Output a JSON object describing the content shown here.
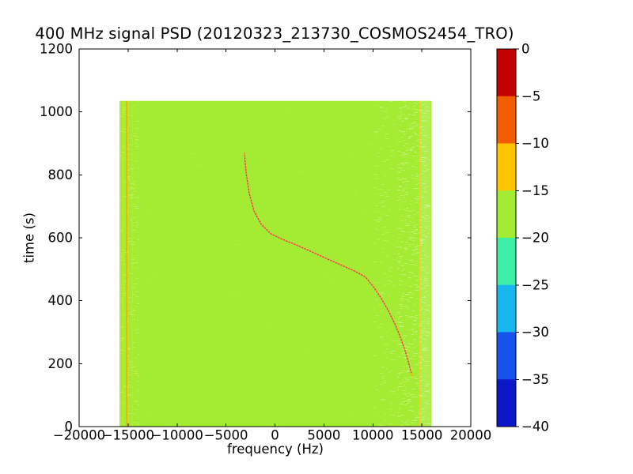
{
  "chart_data": {
    "type": "heatmap",
    "title": "400 MHz signal PSD (20120323_213730_COSMOS2454_TRO)",
    "xlabel": "frequency (Hz)",
    "ylabel": "time (s)",
    "xlim": [
      -20000,
      20000
    ],
    "ylim": [
      0,
      1200
    ],
    "grid": false,
    "xticks": [
      -20000,
      -15000,
      -10000,
      -5000,
      0,
      5000,
      10000,
      15000,
      20000
    ],
    "xtick_labels": [
      "−20000",
      "−15000",
      "−10000",
      "−5000",
      "0",
      "5000",
      "10000",
      "15000",
      "20000"
    ],
    "yticks": [
      0,
      200,
      400,
      600,
      800,
      1000,
      1200
    ],
    "ytick_labels": [
      "0",
      "200",
      "400",
      "600",
      "800",
      "1000",
      "1200"
    ],
    "data_extent": {
      "f_min": -15880,
      "f_max": 15960,
      "t_min": 0,
      "t_max": 1035
    },
    "background_level_db": -17,
    "background_color": "#a4ec34",
    "colorbar": {
      "position": "right",
      "tick_values": [
        0,
        -5,
        -10,
        -15,
        -20,
        -25,
        -30,
        -35,
        -40
      ],
      "tick_labels": [
        "0",
        "−5",
        "−10",
        "−15",
        "−20",
        "−25",
        "−30",
        "−35",
        "−40"
      ],
      "bands_top_to_bottom": [
        {
          "from": 0,
          "to": -5,
          "color": "#c40000"
        },
        {
          "from": -5,
          "to": -10,
          "color": "#f25c00"
        },
        {
          "from": -10,
          "to": -15,
          "color": "#ffc400"
        },
        {
          "from": -15,
          "to": -20,
          "color": "#a4ec34"
        },
        {
          "from": -20,
          "to": -25,
          "color": "#3deea6"
        },
        {
          "from": -25,
          "to": -30,
          "color": "#18b6ee"
        },
        {
          "from": -30,
          "to": -35,
          "color": "#1653ea"
        },
        {
          "from": -35,
          "to": -40,
          "color": "#0b16c8"
        }
      ]
    },
    "vertical_lines": [
      {
        "f": -15800,
        "color": "#ffd84a",
        "width": 1,
        "opacity": 0.45,
        "dash": null
      },
      {
        "f": -15500,
        "color": "#ffd800",
        "width": 1,
        "opacity": 0.7,
        "dash": null
      },
      {
        "f": -15150,
        "color": "#ffb000",
        "width": 2,
        "opacity": 0.95,
        "dash": null
      },
      {
        "f": -14550,
        "color": "#ffd800",
        "width": 1,
        "opacity": 0.5,
        "dash": "4,2"
      },
      {
        "f": -14000,
        "color": "#ffe060",
        "width": 1,
        "opacity": 0.22,
        "dash": "2,3"
      },
      {
        "f": -600,
        "color": "#ffe060",
        "width": 1,
        "opacity": 0.15,
        "dash": "2,3"
      },
      {
        "f": 14750,
        "color": "#ffc81e",
        "width": 1.5,
        "opacity": 0.9,
        "dash": null
      },
      {
        "f": 15350,
        "color": "#ffd84a",
        "width": 1,
        "opacity": 0.4,
        "dash": "4,2"
      }
    ],
    "noise_bands": [
      {
        "f_from": 12400,
        "f_to": 15900,
        "density": 1.6,
        "palette": [
          "rgba(255,255,255,0.30)",
          "rgba(235,255,170,0.45)",
          "rgba(255,240,140,0.28)"
        ]
      },
      {
        "f_from": 10000,
        "f_to": 12400,
        "density": 0.35,
        "palette": [
          "rgba(255,255,255,0.22)",
          "rgba(235,255,170,0.30)"
        ]
      },
      {
        "f_from": -15880,
        "f_to": -13800,
        "density": 0.5,
        "palette": [
          "rgba(255,240,130,0.30)",
          "rgba(235,255,170,0.35)"
        ]
      },
      {
        "f_from": -13800,
        "f_to": 10000,
        "density": 0.12,
        "palette": [
          "rgba(255,255,255,0.10)",
          "rgba(235,255,170,0.12)"
        ]
      }
    ],
    "doppler_curve": {
      "description": "satellite Doppler track, points are [time_s, freq_hz]",
      "color_core": "#dc2814",
      "color_halo": "#f49070",
      "tip_top_color": "#ff9a1e",
      "tip_bottom_color": "#ffb400",
      "points_t_f": [
        [
          161,
          14020
        ],
        [
          176,
          13860
        ],
        [
          198,
          13700
        ],
        [
          241,
          13290
        ],
        [
          284,
          12810
        ],
        [
          326,
          12240
        ],
        [
          367,
          11600
        ],
        [
          407,
          10870
        ],
        [
          444,
          10060
        ],
        [
          475,
          9250
        ],
        [
          492,
          8280
        ],
        [
          515,
          6670
        ],
        [
          537,
          5050
        ],
        [
          560,
          3430
        ],
        [
          580,
          1980
        ],
        [
          595,
          770
        ],
        [
          613,
          -440
        ],
        [
          643,
          -1410
        ],
        [
          685,
          -2140
        ],
        [
          741,
          -2630
        ],
        [
          808,
          -2950
        ],
        [
          841,
          -3050
        ],
        [
          871,
          -3110
        ]
      ]
    }
  }
}
